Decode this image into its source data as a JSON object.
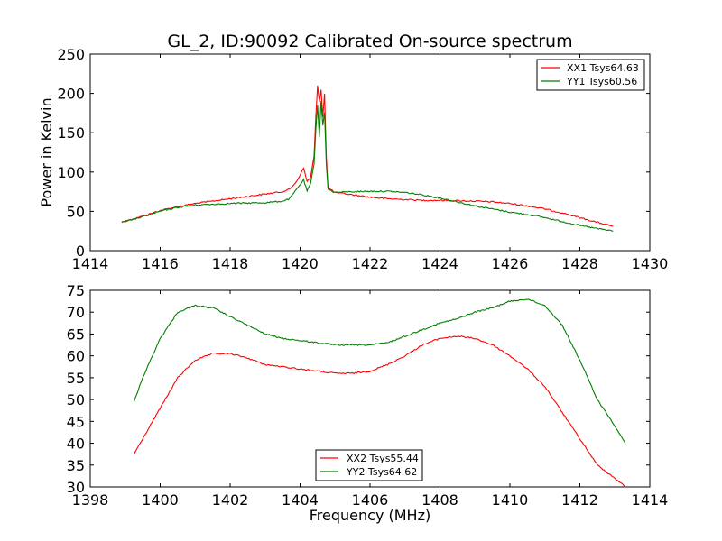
{
  "figure": {
    "title": "GL_2, ID:90092 Calibrated On-source spectrum"
  },
  "chart_data": [
    {
      "type": "line",
      "title": "GL_2, ID:90092 Calibrated On-source spectrum",
      "xlabel": "",
      "ylabel": "Power in Kelvin",
      "xlim": [
        1414,
        1430
      ],
      "ylim": [
        0,
        250
      ],
      "xticks": [
        1414,
        1416,
        1418,
        1420,
        1422,
        1424,
        1426,
        1428,
        1430
      ],
      "yticks": [
        0,
        50,
        100,
        150,
        200,
        250
      ],
      "grid": false,
      "legend_position": "top-right",
      "series": [
        {
          "name": "XX1 Tsys64.63",
          "color": "#ff0000",
          "x": [
            1414.9,
            1415.5,
            1416.0,
            1416.5,
            1417.0,
            1417.5,
            1418.0,
            1418.5,
            1419.0,
            1419.5,
            1419.7,
            1419.9,
            1420.1,
            1420.2,
            1420.3,
            1420.4,
            1420.45,
            1420.5,
            1420.55,
            1420.6,
            1420.65,
            1420.7,
            1420.75,
            1420.8,
            1421.0,
            1421.5,
            1422.0,
            1422.5,
            1423.0,
            1423.5,
            1424.0,
            1424.5,
            1425.0,
            1425.5,
            1426.0,
            1426.5,
            1427.0,
            1427.5,
            1428.0,
            1428.5,
            1428.95
          ],
          "y": [
            36,
            44,
            51,
            56,
            60,
            63,
            66,
            69,
            72,
            75,
            78,
            88,
            105,
            88,
            93,
            120,
            170,
            210,
            190,
            205,
            170,
            200,
            120,
            80,
            74,
            71,
            68,
            66,
            65,
            64,
            64,
            63.5,
            63,
            62,
            60,
            57,
            53,
            48,
            42,
            36,
            31
          ]
        },
        {
          "name": "YY1 Tsys60.56",
          "color": "#007f00",
          "x": [
            1414.9,
            1415.5,
            1416.0,
            1416.5,
            1417.0,
            1417.5,
            1418.0,
            1418.5,
            1419.0,
            1419.5,
            1419.7,
            1419.9,
            1420.1,
            1420.2,
            1420.3,
            1420.4,
            1420.45,
            1420.5,
            1420.55,
            1420.6,
            1420.65,
            1420.7,
            1420.75,
            1420.8,
            1421.0,
            1421.5,
            1422.0,
            1422.5,
            1423.0,
            1423.5,
            1424.0,
            1424.5,
            1425.0,
            1425.5,
            1426.0,
            1426.5,
            1427.0,
            1427.5,
            1428.0,
            1428.5,
            1428.95
          ],
          "y": [
            36,
            43,
            50,
            55,
            58,
            59,
            60,
            60.5,
            61,
            63,
            66,
            78,
            90,
            76,
            85,
            110,
            155,
            185,
            145,
            190,
            160,
            175,
            110,
            78,
            74,
            75,
            75.5,
            75.5,
            74,
            71,
            67,
            62,
            57,
            53,
            49,
            46,
            42,
            37,
            32,
            28,
            25
          ]
        }
      ]
    },
    {
      "type": "line",
      "title": "",
      "xlabel": "Frequency (MHz)",
      "ylabel": "",
      "xlim": [
        1398,
        1414
      ],
      "ylim": [
        30,
        75
      ],
      "xticks": [
        1398,
        1400,
        1402,
        1404,
        1406,
        1408,
        1410,
        1412,
        1414
      ],
      "yticks": [
        30,
        35,
        40,
        45,
        50,
        55,
        60,
        65,
        70,
        75
      ],
      "grid": false,
      "legend_position": "bottom-center",
      "series": [
        {
          "name": "XX2 Tsys55.44",
          "color": "#ff0000",
          "x": [
            1399.25,
            1399.5,
            1400.0,
            1400.5,
            1401.0,
            1401.5,
            1402.0,
            1402.5,
            1403.0,
            1403.5,
            1404.0,
            1404.5,
            1405.0,
            1405.5,
            1406.0,
            1406.5,
            1407.0,
            1407.5,
            1408.0,
            1408.5,
            1409.0,
            1409.5,
            1410.0,
            1410.5,
            1411.0,
            1411.5,
            1412.0,
            1412.5,
            1413.0,
            1413.3
          ],
          "y": [
            37.5,
            41,
            48,
            55,
            59,
            60.5,
            60.5,
            59.5,
            58,
            57.5,
            57,
            56.5,
            56,
            56,
            56.5,
            58,
            60,
            62.5,
            64,
            64.5,
            64,
            62.5,
            60,
            57,
            53,
            47,
            41,
            35,
            32,
            30
          ]
        },
        {
          "name": "YY2 Tsys64.62",
          "color": "#007f00",
          "x": [
            1399.25,
            1399.5,
            1400.0,
            1400.5,
            1401.0,
            1401.5,
            1402.0,
            1402.5,
            1403.0,
            1403.5,
            1404.0,
            1404.5,
            1405.0,
            1405.5,
            1406.0,
            1406.5,
            1407.0,
            1407.5,
            1408.0,
            1408.5,
            1409.0,
            1409.5,
            1410.0,
            1410.5,
            1411.0,
            1411.5,
            1412.0,
            1412.5,
            1413.0,
            1413.3
          ],
          "y": [
            49.5,
            55,
            64,
            70,
            71.5,
            71,
            69,
            67,
            65,
            64,
            63.5,
            63,
            62.5,
            62.5,
            62.5,
            63,
            64.5,
            66,
            67.5,
            68.5,
            70,
            71,
            72.5,
            73,
            71.5,
            67,
            59,
            50,
            44,
            40
          ]
        }
      ]
    }
  ]
}
